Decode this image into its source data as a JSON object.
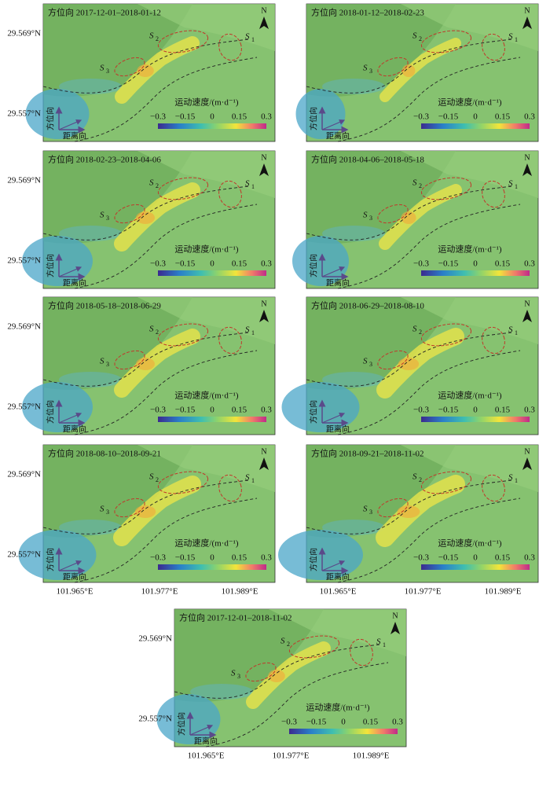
{
  "panels": [
    {
      "title": "方位向 2017-12-01–2018-01-12"
    },
    {
      "title": "方位向 2018-01-12–2018-02-23"
    },
    {
      "title": "方位向 2018-02-23–2018-04-06"
    },
    {
      "title": "方位向 2018-04-06–2018-05-18"
    },
    {
      "title": "方位向 2018-05-18–2018-06-29"
    },
    {
      "title": "方位向 2018-06-29–2018-08-10"
    },
    {
      "title": "方位向 2018-08-10–2018-09-21"
    },
    {
      "title": "方位向 2018-09-21–2018-11-02"
    },
    {
      "title": "方位向 2017-12-01–2018-11-02"
    }
  ],
  "north": "N",
  "sites": [
    {
      "name": "S",
      "sub": "1"
    },
    {
      "name": "S",
      "sub": "2"
    },
    {
      "name": "S",
      "sub": "3"
    }
  ],
  "legend": {
    "title": "运动速度/(m·d⁻¹)",
    "ticks": [
      "−0.3",
      "−0.15",
      "0",
      "0.15",
      "0.3"
    ]
  },
  "directions": {
    "azimuth": "方位向",
    "range": "距离向"
  },
  "lat_labels": [
    "29.569°N",
    "29.557°N"
  ],
  "lon_labels": [
    "101.965°E",
    "101.977°E",
    "101.989°E"
  ]
}
